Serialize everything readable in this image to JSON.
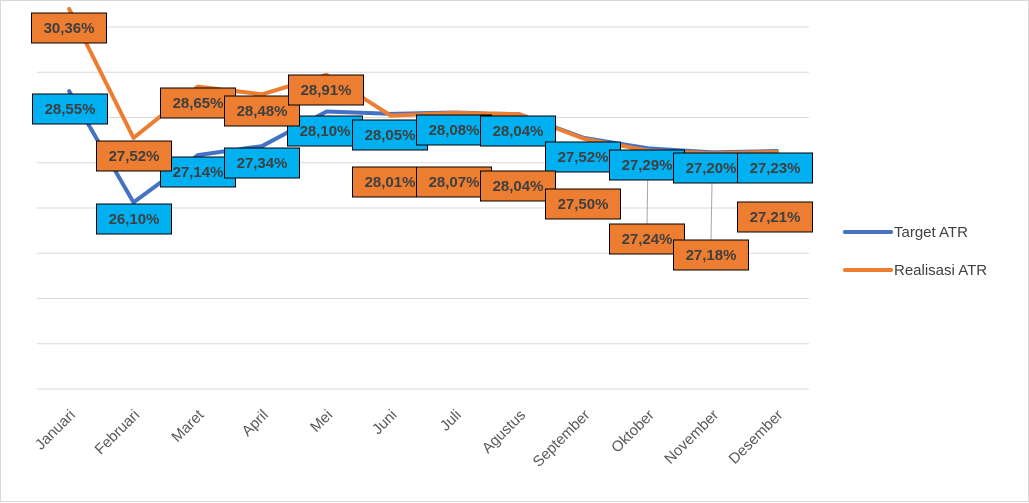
{
  "chart_data": {
    "type": "line",
    "title": "",
    "xlabel": "",
    "ylabel": "",
    "categories": [
      "Januari",
      "Februari",
      "Maret",
      "April",
      "Mei",
      "Juni",
      "Juli",
      "Agustus",
      "September",
      "Oktober",
      "November",
      "Desember"
    ],
    "ylim": [
      0,
      100
    ],
    "grid": true,
    "legend_position": "right",
    "series": [
      {
        "name": "Target ATR",
        "color": "#4472C4",
        "values": [
          28.55,
          26.1,
          27.14,
          27.34,
          28.1,
          28.05,
          28.08,
          28.04,
          27.52,
          27.29,
          27.2,
          27.23
        ],
        "labels": [
          "28,55%",
          "26,10%",
          "27,14%",
          "27,34%",
          "28,10%",
          "28,05%",
          "28,08%",
          "28,04%",
          "27,52%",
          "27,29%",
          "27,20%",
          "27,23%"
        ],
        "label_fill": "#00B0F0"
      },
      {
        "name": "Realisasi ATR",
        "color": "#ED7D31",
        "values": [
          30.36,
          27.52,
          28.65,
          28.48,
          28.91,
          28.01,
          28.07,
          28.04,
          27.5,
          27.24,
          27.18,
          27.21
        ],
        "labels": [
          "30,36%",
          "27,52%",
          "28,65%",
          "28,48%",
          "28,91%",
          "28,01%",
          "28,07%",
          "28,04%",
          "27,50%",
          "27,24%",
          "27,18%",
          "27,21%"
        ],
        "label_fill": "#ED7D31"
      }
    ]
  }
}
